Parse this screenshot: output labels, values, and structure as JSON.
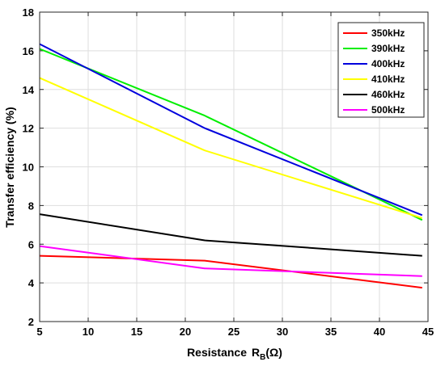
{
  "chart_data": {
    "type": "line",
    "xlabel": "Resistance",
    "xlabel_symbol": "R",
    "xlabel_subscript": "B",
    "xlabel_unit": "(Ω)",
    "ylabel": "Transfer efficiency (%)",
    "xlim": [
      5,
      45
    ],
    "ylim": [
      2,
      18
    ],
    "xticks": [
      5,
      10,
      15,
      20,
      25,
      30,
      35,
      40,
      45
    ],
    "yticks": [
      2,
      4,
      6,
      8,
      10,
      12,
      14,
      16,
      18
    ],
    "grid": true,
    "legend_position": "top-right",
    "x": [
      5,
      22,
      44.4
    ],
    "series": [
      {
        "name": "350kHz",
        "color": "#ff0000",
        "values": [
          5.4,
          5.15,
          3.75
        ]
      },
      {
        "name": "390kHz",
        "color": "#00ee00",
        "values": [
          16.1,
          12.65,
          7.25
        ]
      },
      {
        "name": "400kHz",
        "color": "#0000dd",
        "values": [
          16.35,
          12.0,
          7.5
        ]
      },
      {
        "name": "410kHz",
        "color": "#ffff00",
        "values": [
          14.6,
          10.85,
          7.35
        ]
      },
      {
        "name": "460kHz",
        "color": "#000000",
        "values": [
          7.55,
          6.2,
          5.4
        ]
      },
      {
        "name": "500kHz",
        "color": "#ff00ff",
        "values": [
          5.9,
          4.75,
          4.35
        ]
      }
    ]
  }
}
